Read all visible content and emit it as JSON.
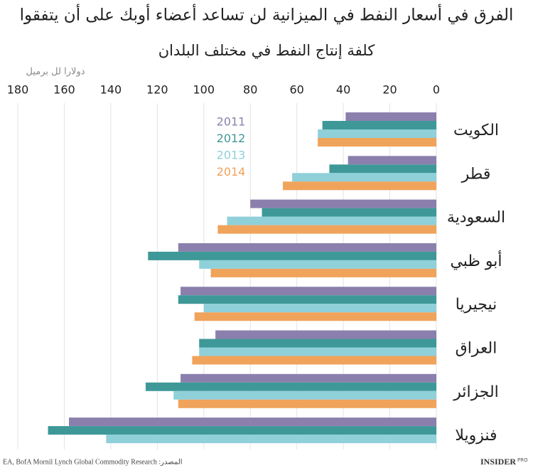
{
  "chart_data": {
    "type": "barh",
    "title": "الفرق في أسعار النفط في الميزانية لن تساعد أعضاء أوبك على أن يتفقوا",
    "subtitle": "كلفة إنتاج النفط في مختلف البلدان",
    "x_label": "دولارا لل برميل",
    "categories": [
      "الكويت",
      "قطر",
      "السعودية",
      "أبو ظبي",
      "نيجيريا",
      "العراق",
      "الجزائر",
      "فنزويلا"
    ],
    "series": [
      {
        "name": "2011",
        "color": "#8b80ad",
        "values": [
          39,
          38,
          80,
          111,
          110,
          95,
          110,
          158
        ]
      },
      {
        "name": "2012",
        "color": "#3e9897",
        "values": [
          49,
          46,
          75,
          124,
          111,
          102,
          125,
          167
        ]
      },
      {
        "name": "2013",
        "color": "#8fd0d9",
        "values": [
          51,
          62,
          90,
          102,
          100,
          102,
          113,
          142
        ]
      },
      {
        "name": "2014",
        "color": "#f0a35b",
        "values": [
          51,
          66,
          94,
          97,
          104,
          105,
          111,
          null
        ]
      }
    ],
    "xlim": [
      0,
      180
    ],
    "xticks": [
      0,
      20,
      40,
      60,
      80,
      100,
      120,
      140,
      160,
      180
    ],
    "grid": true,
    "source": "EA, BofA Mornil Lynch Global Commodity Research  :المصدر",
    "brand": "INSIDER",
    "brand_sub": "PRO"
  }
}
